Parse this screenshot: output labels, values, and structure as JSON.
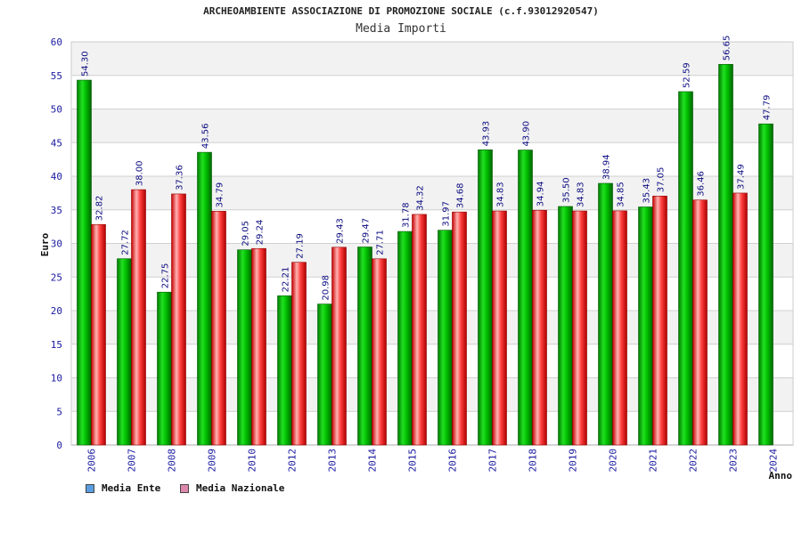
{
  "chart_data": {
    "type": "bar",
    "title": "ARCHEOAMBIENTE ASSOCIAZIONE DI PROMOZIONE SOCIALE (c.f.93012920547)",
    "subtitle": "Media Importi",
    "xlabel": "Anno",
    "ylabel": "Euro",
    "ylim": [
      0,
      60
    ],
    "yticks": [
      0,
      5,
      10,
      15,
      20,
      25,
      30,
      35,
      40,
      45,
      50,
      55,
      60
    ],
    "grid": true,
    "legend_position": "bottom-left",
    "categories": [
      "2006",
      "2007",
      "2008",
      "2009",
      "2010",
      "2012",
      "2013",
      "2014",
      "2015",
      "2016",
      "2017",
      "2018",
      "2019",
      "2020",
      "2021",
      "2022",
      "2023",
      "2024"
    ],
    "series": [
      {
        "name": "Media Ente",
        "color": "#00aa00",
        "legend_color": "#5a9de0",
        "values": [
          54.3,
          27.72,
          22.75,
          43.56,
          29.05,
          22.21,
          20.98,
          29.47,
          31.78,
          31.97,
          43.93,
          43.9,
          35.5,
          38.94,
          35.43,
          52.59,
          56.65,
          47.79
        ],
        "labels": [
          "54.30",
          "27.72",
          "22.75",
          "43.56",
          "29.05",
          "22.21",
          "20.98",
          "29.47",
          "31.78",
          "31.97",
          "43.93",
          "43.90",
          "35.50",
          "38.94",
          "35.43",
          "52.59",
          "56.65",
          "47.79"
        ]
      },
      {
        "name": "Media Nazionale",
        "color": "#e60000",
        "legend_color": "#dd88aa",
        "values": [
          32.82,
          38.0,
          37.36,
          34.79,
          29.24,
          27.19,
          29.43,
          27.71,
          34.32,
          34.68,
          34.83,
          34.94,
          34.83,
          34.85,
          37.05,
          36.46,
          37.49,
          null
        ],
        "labels": [
          "32.82",
          "38.00",
          "37.36",
          "34.79",
          "29.24",
          "27.19",
          "29.43",
          "27.71",
          "34.32",
          "34.68",
          "34.83",
          "34.94",
          "34.83",
          "34.85",
          "37.05",
          "36.46",
          "37.49",
          ""
        ]
      }
    ]
  },
  "colors": {
    "axis_text": "#1a1aa0",
    "label_text": "#0a0a80",
    "band": "#f2f2f2",
    "grid": "#d0d0d0"
  }
}
